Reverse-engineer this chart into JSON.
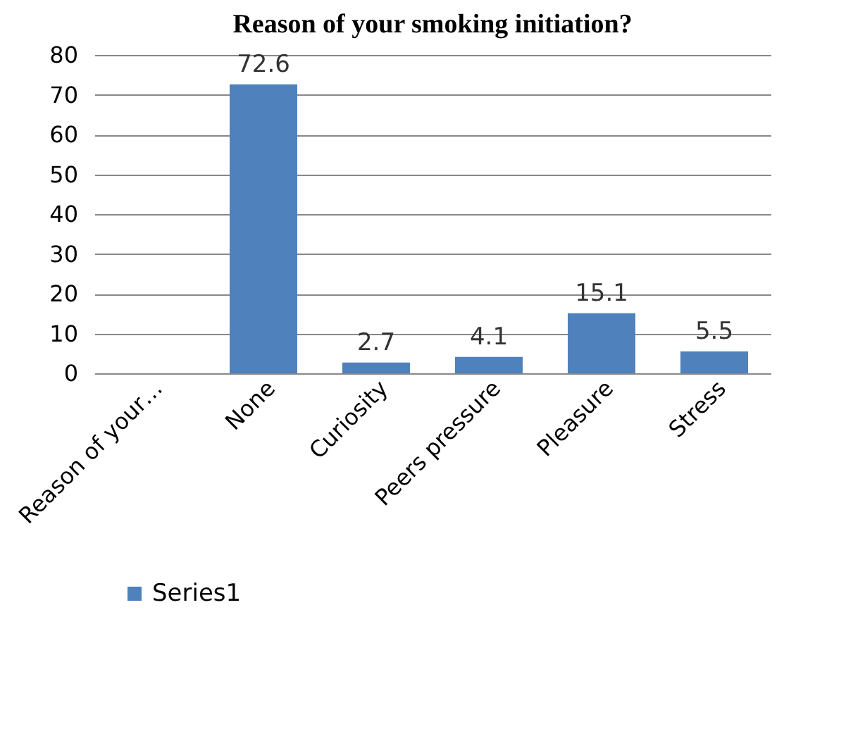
{
  "chart_data": {
    "type": "bar",
    "title": "Reason of your smoking initiation?",
    "categories": [
      "Reason of your…",
      "None",
      "Curiosity",
      "Peers pressure",
      "Pleasure",
      "Stress"
    ],
    "series": [
      {
        "name": "Series1",
        "color": "#4f81bd",
        "values": [
          null,
          72.6,
          2.7,
          4.1,
          15.1,
          5.5
        ]
      }
    ],
    "ylim": [
      0,
      80
    ],
    "yticks": [
      0,
      10,
      20,
      30,
      40,
      50,
      60,
      70,
      80
    ],
    "grid": "y",
    "legend": "bottom",
    "data_labels": true
  }
}
